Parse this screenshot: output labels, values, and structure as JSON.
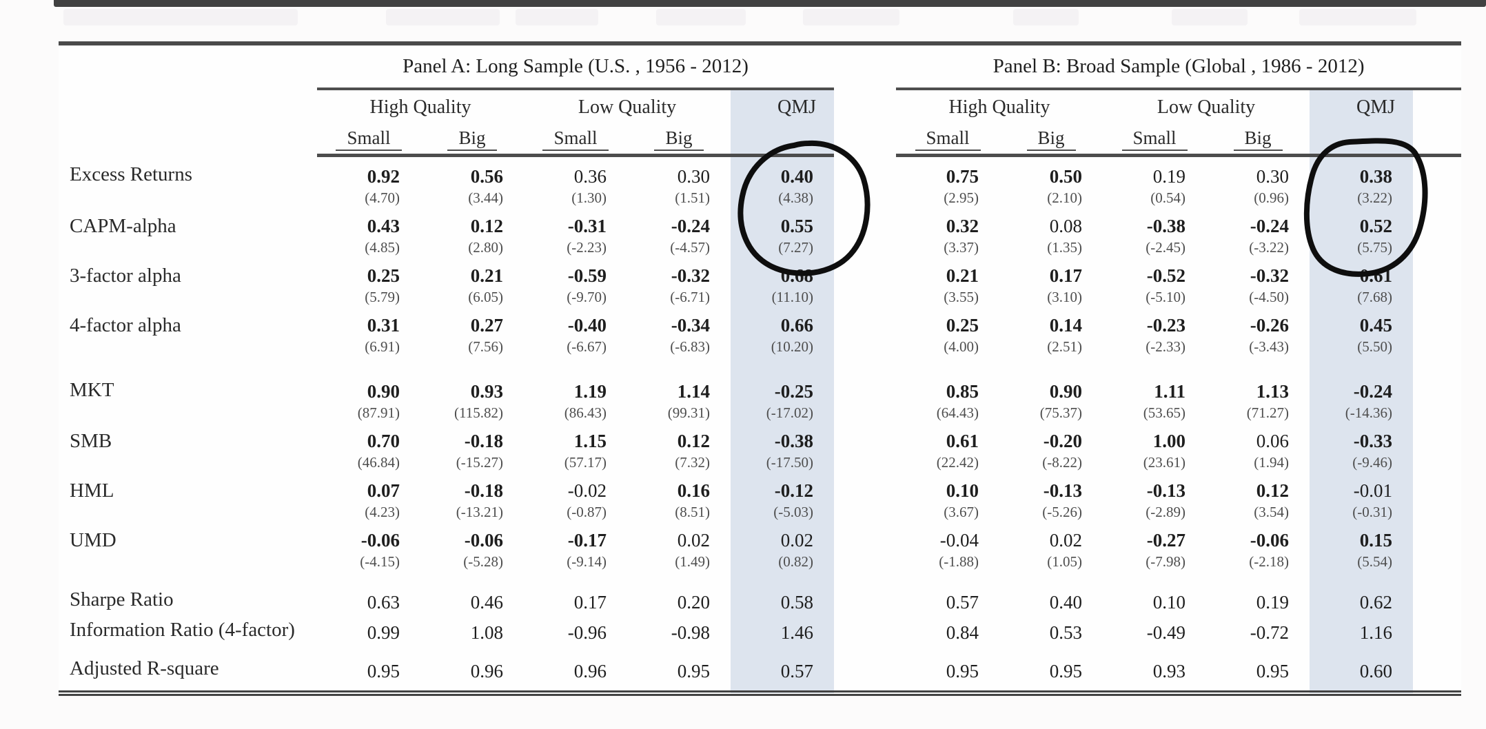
{
  "table": {
    "panel_a": {
      "title": "Panel A: Long Sample (U.S. , 1956 - 2012)"
    },
    "panel_b": {
      "title": "Panel B: Broad Sample (Global , 1986 - 2012)"
    },
    "col_groups": {
      "high_quality": "High Quality",
      "low_quality": "Low Quality",
      "qmj": "QMJ"
    },
    "size_cols": {
      "small": "Small",
      "big": "Big"
    },
    "highlight_color": "#dde4ee",
    "column_order": [
      "High Quality Small",
      "High Quality Big",
      "Low Quality Small",
      "Low Quality Big",
      "QMJ"
    ],
    "rows": [
      {
        "label": "Excess Returns",
        "cls": "",
        "cells": [
          [
            "0.92",
            "(4.70)",
            1
          ],
          [
            "0.56",
            "(3.44)",
            1
          ],
          [
            "0.36",
            "(1.30)",
            0
          ],
          [
            "0.30",
            "(1.51)",
            0
          ],
          [
            "0.40",
            "(4.38)",
            1
          ],
          [
            "0.75",
            "(2.95)",
            1
          ],
          [
            "0.50",
            "(2.10)",
            1
          ],
          [
            "0.19",
            "(0.54)",
            0
          ],
          [
            "0.30",
            "(0.96)",
            0
          ],
          [
            "0.38",
            "(3.22)",
            1
          ]
        ]
      },
      {
        "label": "CAPM-alpha",
        "cls": "",
        "cells": [
          [
            "0.43",
            "(4.85)",
            1
          ],
          [
            "0.12",
            "(2.80)",
            1
          ],
          [
            "-0.31",
            "(-2.23)",
            1
          ],
          [
            "-0.24",
            "(-4.57)",
            1
          ],
          [
            "0.55",
            "(7.27)",
            1
          ],
          [
            "0.32",
            "(3.37)",
            1
          ],
          [
            "0.08",
            "(1.35)",
            0
          ],
          [
            "-0.38",
            "(-2.45)",
            1
          ],
          [
            "-0.24",
            "(-3.22)",
            1
          ],
          [
            "0.52",
            "(5.75)",
            1
          ]
        ]
      },
      {
        "label": "3-factor alpha",
        "cls": "",
        "cells": [
          [
            "0.25",
            "(5.79)",
            1
          ],
          [
            "0.21",
            "(6.05)",
            1
          ],
          [
            "-0.59",
            "(-9.70)",
            1
          ],
          [
            "-0.32",
            "(-6.71)",
            1
          ],
          [
            "0.68",
            "(11.10)",
            1
          ],
          [
            "0.21",
            "(3.55)",
            1
          ],
          [
            "0.17",
            "(3.10)",
            1
          ],
          [
            "-0.52",
            "(-5.10)",
            1
          ],
          [
            "-0.32",
            "(-4.50)",
            1
          ],
          [
            "0.61",
            "(7.68)",
            1
          ]
        ]
      },
      {
        "label": "4-factor alpha",
        "cls": "",
        "cells": [
          [
            "0.31",
            "(6.91)",
            1
          ],
          [
            "0.27",
            "(7.56)",
            1
          ],
          [
            "-0.40",
            "(-6.67)",
            1
          ],
          [
            "-0.34",
            "(-6.83)",
            1
          ],
          [
            "0.66",
            "(10.20)",
            1
          ],
          [
            "0.25",
            "(4.00)",
            1
          ],
          [
            "0.14",
            "(2.51)",
            1
          ],
          [
            "-0.23",
            "(-2.33)",
            1
          ],
          [
            "-0.26",
            "(-3.43)",
            1
          ],
          [
            "0.45",
            "(5.50)",
            1
          ]
        ]
      },
      {
        "label": "MKT",
        "cls": "gap",
        "cells": [
          [
            "0.90",
            "(87.91)",
            1
          ],
          [
            "0.93",
            "(115.82)",
            1
          ],
          [
            "1.19",
            "(86.43)",
            1
          ],
          [
            "1.14",
            "(99.31)",
            1
          ],
          [
            "-0.25",
            "(-17.02)",
            1
          ],
          [
            "0.85",
            "(64.43)",
            1
          ],
          [
            "0.90",
            "(75.37)",
            1
          ],
          [
            "1.11",
            "(53.65)",
            1
          ],
          [
            "1.13",
            "(71.27)",
            1
          ],
          [
            "-0.24",
            "(-14.36)",
            1
          ]
        ]
      },
      {
        "label": "SMB",
        "cls": "",
        "cells": [
          [
            "0.70",
            "(46.84)",
            1
          ],
          [
            "-0.18",
            "(-15.27)",
            1
          ],
          [
            "1.15",
            "(57.17)",
            1
          ],
          [
            "0.12",
            "(7.32)",
            1
          ],
          [
            "-0.38",
            "(-17.50)",
            1
          ],
          [
            "0.61",
            "(22.42)",
            1
          ],
          [
            "-0.20",
            "(-8.22)",
            1
          ],
          [
            "1.00",
            "(23.61)",
            1
          ],
          [
            "0.06",
            "(1.94)",
            0
          ],
          [
            "-0.33",
            "(-9.46)",
            1
          ]
        ]
      },
      {
        "label": "HML",
        "cls": "",
        "cells": [
          [
            "0.07",
            "(4.23)",
            1
          ],
          [
            "-0.18",
            "(-13.21)",
            1
          ],
          [
            "-0.02",
            "(-0.87)",
            0
          ],
          [
            "0.16",
            "(8.51)",
            1
          ],
          [
            "-0.12",
            "(-5.03)",
            1
          ],
          [
            "0.10",
            "(3.67)",
            1
          ],
          [
            "-0.13",
            "(-5.26)",
            1
          ],
          [
            "-0.13",
            "(-2.89)",
            1
          ],
          [
            "0.12",
            "(3.54)",
            1
          ],
          [
            "-0.01",
            "(-0.31)",
            0
          ]
        ]
      },
      {
        "label": "UMD",
        "cls": "",
        "cells": [
          [
            "-0.06",
            "(-4.15)",
            1
          ],
          [
            "-0.06",
            "(-5.28)",
            1
          ],
          [
            "-0.17",
            "(-9.14)",
            1
          ],
          [
            "0.02",
            "(1.49)",
            0
          ],
          [
            "0.02",
            "(0.82)",
            0
          ],
          [
            "-0.04",
            "(-1.88)",
            0
          ],
          [
            "0.02",
            "(1.05)",
            0
          ],
          [
            "-0.27",
            "(-7.98)",
            1
          ],
          [
            "-0.06",
            "(-2.18)",
            1
          ],
          [
            "0.15",
            "(5.54)",
            1
          ]
        ]
      },
      {
        "label": "Sharpe Ratio",
        "cls": "single gap2",
        "cells": [
          [
            "0.63",
            null,
            0
          ],
          [
            "0.46",
            null,
            0
          ],
          [
            "0.17",
            null,
            0
          ],
          [
            "0.20",
            null,
            0
          ],
          [
            "0.58",
            null,
            0
          ],
          [
            "0.57",
            null,
            0
          ],
          [
            "0.40",
            null,
            0
          ],
          [
            "0.10",
            null,
            0
          ],
          [
            "0.19",
            null,
            0
          ],
          [
            "0.62",
            null,
            0
          ]
        ]
      },
      {
        "label": "Information Ratio (4-factor)",
        "cls": "single",
        "cells": [
          [
            "0.99",
            null,
            0
          ],
          [
            "1.08",
            null,
            0
          ],
          [
            "-0.96",
            null,
            0
          ],
          [
            "-0.98",
            null,
            0
          ],
          [
            "1.46",
            null,
            0
          ],
          [
            "0.84",
            null,
            0
          ],
          [
            "0.53",
            null,
            0
          ],
          [
            "-0.49",
            null,
            0
          ],
          [
            "-0.72",
            null,
            0
          ],
          [
            "1.16",
            null,
            0
          ]
        ]
      },
      {
        "label": "Adjusted R-square",
        "cls": "single last",
        "cells": [
          [
            "0.95",
            null,
            0
          ],
          [
            "0.96",
            null,
            0
          ],
          [
            "0.96",
            null,
            0
          ],
          [
            "0.95",
            null,
            0
          ],
          [
            "0.57",
            null,
            0
          ],
          [
            "0.95",
            null,
            0
          ],
          [
            "0.95",
            null,
            0
          ],
          [
            "0.93",
            null,
            0
          ],
          [
            "0.95",
            null,
            0
          ],
          [
            "0.60",
            null,
            0
          ]
        ]
      }
    ]
  },
  "annotations": {
    "stroke_color": "#0e0e0e",
    "circles": [
      {
        "description": "hand-drawn circle around Panel A QMJ excess return and CAPM-alpha",
        "circled_values": [
          "0.40",
          "(4.38)",
          "0.55",
          "(7.27)"
        ]
      },
      {
        "description": "hand-drawn circle around Panel B QMJ excess return and CAPM-alpha",
        "circled_values": [
          "0.38",
          "(3.22)",
          "0.52",
          "(5.75)"
        ]
      }
    ]
  }
}
